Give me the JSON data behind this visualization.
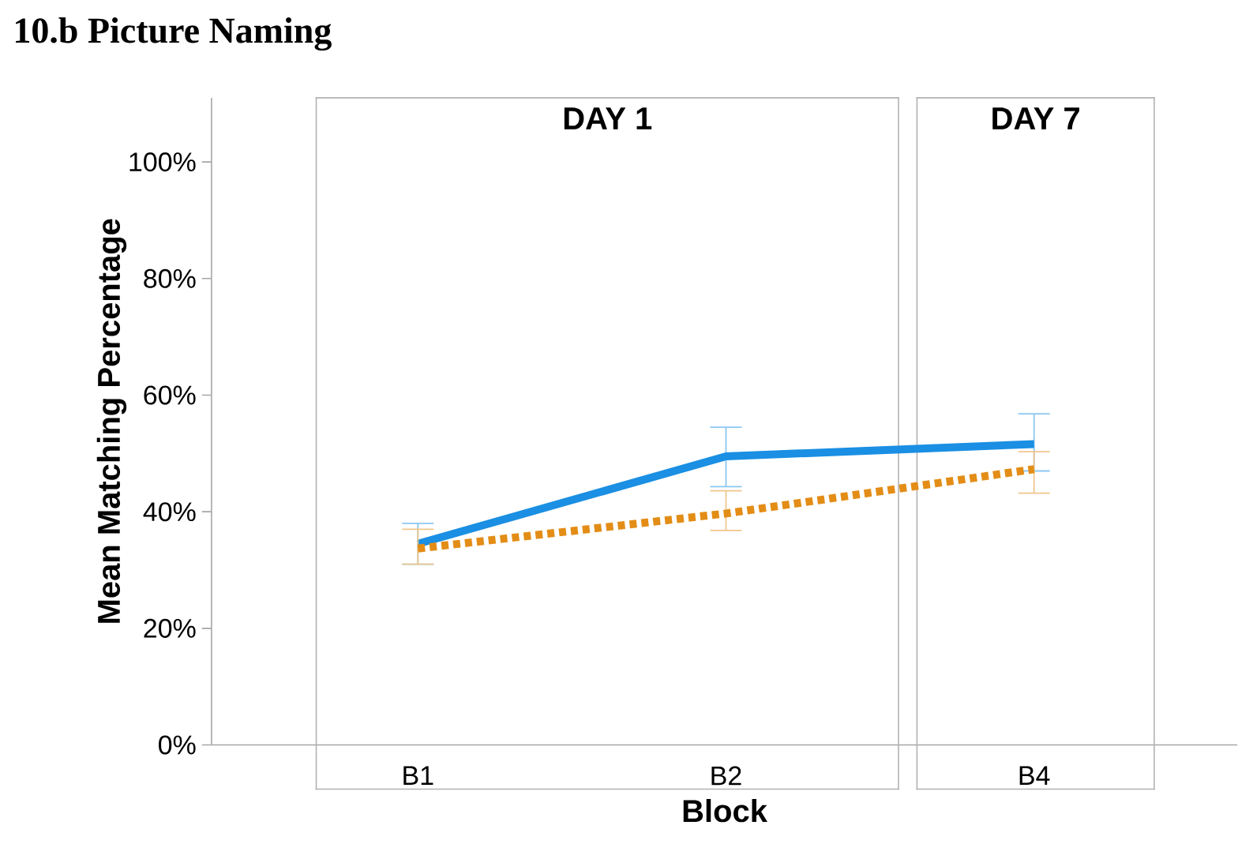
{
  "chart_data": {
    "type": "line",
    "title": "10.b Picture Naming",
    "xlabel": "Block",
    "ylabel": "Mean Matching Percentage",
    "categories": [
      "B1",
      "B2",
      "B4"
    ],
    "series": [
      {
        "color": "#1a8fe3",
        "values": [
          34.5,
          49.5,
          51.6
        ],
        "errors": [
          [
            31.0,
            38.0
          ],
          [
            44.3,
            54.5
          ],
          [
            47.0,
            56.8
          ]
        ],
        "line_style": "solid"
      },
      {
        "color": "#e38d17",
        "values": [
          33.7,
          39.7,
          47.3
        ],
        "errors": [
          [
            31.0,
            37.0
          ],
          [
            36.8,
            43.6
          ],
          [
            43.2,
            50.3
          ]
        ],
        "line_style": "dotted"
      }
    ],
    "ylim": [
      0,
      111
    ],
    "yticks": [
      {
        "value": 0,
        "label": "0%"
      },
      {
        "value": 20,
        "label": "20%"
      },
      {
        "value": 40,
        "label": "40%"
      },
      {
        "value": 60,
        "label": "60%"
      },
      {
        "value": 80,
        "label": "80%"
      },
      {
        "value": 100,
        "label": "100%"
      }
    ],
    "annotations": [
      "DAY 1",
      "DAY 7"
    ],
    "grid": false,
    "marker": "none"
  }
}
